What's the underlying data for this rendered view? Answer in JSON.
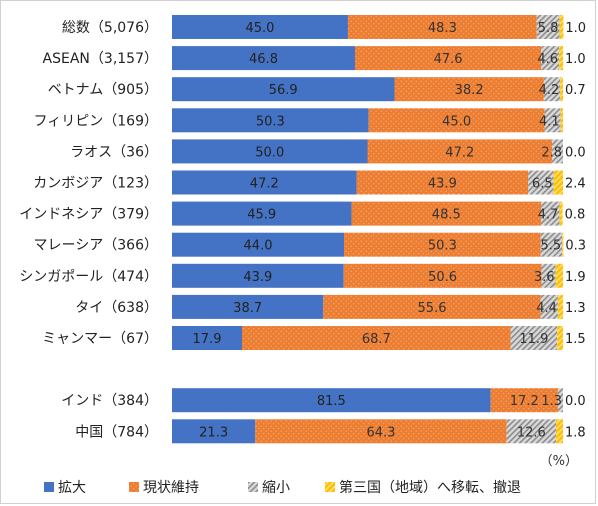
{
  "chart_data": {
    "type": "bar",
    "orientation": "horizontal",
    "stacked": true,
    "unit": "（%）",
    "categories": [
      "総数（5,076）",
      "ASEAN（3,157）",
      "ベトナム（905）",
      "フィリピン（169）",
      "ラオス（36）",
      "カンボジア（123）",
      "インドネシア（379）",
      "マレーシア（366）",
      "シンガポール（474）",
      "タイ（638）",
      "ミャンマー（67）",
      "",
      "インド（384）",
      "中国（784）"
    ],
    "series": [
      {
        "name": "拡大",
        "color": "#4472C4",
        "values": [
          45.0,
          46.8,
          56.9,
          50.3,
          50.0,
          47.2,
          45.9,
          44.0,
          43.9,
          38.7,
          17.9,
          null,
          81.5,
          21.3
        ],
        "labels": [
          "45.0",
          "46.8",
          "56.9",
          "50.3",
          "50.0",
          "47.2",
          "45.9",
          "44.0",
          "43.9",
          "38.7",
          "17.9",
          "",
          "81.5",
          "21.3"
        ]
      },
      {
        "name": "現状維持",
        "color": "#ED7D31",
        "values": [
          48.3,
          47.6,
          38.2,
          45.0,
          47.2,
          43.9,
          48.5,
          50.3,
          50.6,
          55.6,
          68.7,
          null,
          17.2,
          64.3
        ],
        "labels": [
          "48.3",
          "47.6",
          "38.2",
          "45.0",
          "47.2",
          "43.9",
          "48.5",
          "50.3",
          "50.6",
          "55.6",
          "68.7",
          "",
          "17.2",
          "64.3"
        ]
      },
      {
        "name": "縮小",
        "color": "#A5A5A5",
        "values": [
          5.8,
          4.6,
          4.2,
          4.1,
          2.8,
          6.5,
          4.7,
          5.5,
          3.6,
          4.4,
          11.9,
          null,
          1.3,
          12.6
        ],
        "labels": [
          "5.8",
          "4.6",
          "4.2",
          "4.1",
          "2.8",
          "6.5",
          "4.7",
          "5.5",
          "3.6",
          "4.4",
          "11.9",
          "",
          "1.3",
          "12.6"
        ]
      },
      {
        "name": "第三国（地域）へ移転、撤退",
        "color": "#FFC000",
        "values": [
          1.0,
          1.0,
          0.7,
          0.6,
          0.0,
          2.4,
          0.8,
          0.3,
          1.9,
          1.3,
          1.5,
          null,
          0.0,
          1.8
        ],
        "labels": [
          "1.0",
          "1.0",
          "0.7",
          "",
          "0.0",
          "2.4",
          "0.8",
          "0.3",
          "1.9",
          "1.3",
          "1.5",
          "",
          "0.0",
          "1.8"
        ]
      }
    ],
    "xlim": [
      0,
      100
    ],
    "legend": "bottom",
    "grid": false
  }
}
